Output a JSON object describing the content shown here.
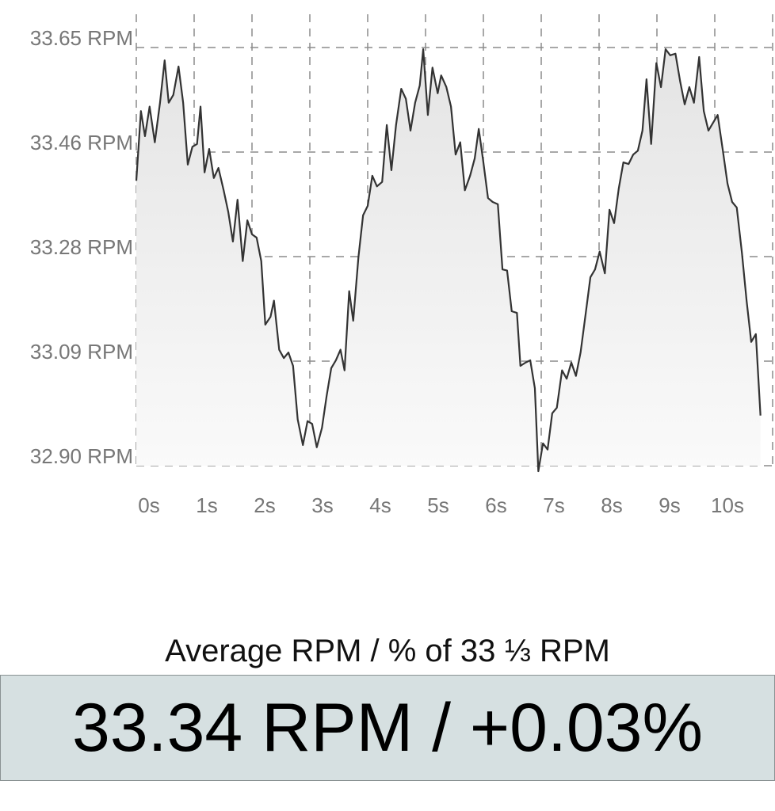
{
  "chart_data": {
    "type": "line",
    "color": "#333333",
    "grid": true,
    "xlim": [
      0,
      11
    ],
    "ylim": [
      32.9,
      33.65
    ],
    "xticks": [
      {
        "value": 0,
        "label": "0s"
      },
      {
        "value": 1,
        "label": "1s"
      },
      {
        "value": 2,
        "label": "2s"
      },
      {
        "value": 3,
        "label": "3s"
      },
      {
        "value": 4,
        "label": "4s"
      },
      {
        "value": 5,
        "label": "5s"
      },
      {
        "value": 6,
        "label": "6s"
      },
      {
        "value": 7,
        "label": "7s"
      },
      {
        "value": 8,
        "label": "8s"
      },
      {
        "value": 9,
        "label": "9s"
      },
      {
        "value": 10,
        "label": "10s"
      }
    ],
    "yticks": [
      {
        "value": 33.65,
        "label": "33.65 RPM"
      },
      {
        "value": 33.4625,
        "label": "33.46 RPM"
      },
      {
        "value": 33.275,
        "label": "33.28 RPM"
      },
      {
        "value": 33.0875,
        "label": "33.09 RPM"
      },
      {
        "value": 32.9,
        "label": "32.90 RPM"
      }
    ],
    "x": [
      0,
      0.08,
      0.15,
      0.23,
      0.32,
      0.41,
      0.49,
      0.56,
      0.64,
      0.73,
      0.81,
      0.89,
      0.97,
      1.05,
      1.11,
      1.18,
      1.26,
      1.34,
      1.42,
      1.51,
      1.59,
      1.67,
      1.75,
      1.84,
      1.92,
      2.0,
      2.08,
      2.16,
      2.23,
      2.32,
      2.38,
      2.47,
      2.55,
      2.63,
      2.71,
      2.79,
      2.88,
      2.96,
      3.04,
      3.12,
      3.21,
      3.29,
      3.37,
      3.45,
      3.53,
      3.6,
      3.68,
      3.75,
      3.84,
      3.92,
      4.0,
      4.08,
      4.16,
      4.25,
      4.33,
      4.41,
      4.49,
      4.58,
      4.66,
      4.74,
      4.82,
      4.9,
      4.96,
      5.04,
      5.12,
      5.21,
      5.27,
      5.36,
      5.44,
      5.52,
      5.6,
      5.68,
      5.77,
      5.85,
      5.92,
      6.0,
      6.08,
      6.16,
      6.25,
      6.33,
      6.41,
      6.49,
      6.58,
      6.64,
      6.73,
      6.81,
      6.89,
      6.95,
      7.03,
      7.11,
      7.19,
      7.27,
      7.36,
      7.44,
      7.52,
      7.6,
      7.68,
      7.77,
      7.85,
      7.93,
      8.01,
      8.1,
      8.18,
      8.26,
      8.34,
      8.42,
      8.51,
      8.59,
      8.67,
      8.75,
      8.82,
      8.9,
      8.99,
      9.07,
      9.15,
      9.23,
      9.32,
      9.4,
      9.48,
      9.56,
      9.64,
      9.73,
      9.81,
      9.89,
      9.97,
      10.05,
      10.14,
      10.22,
      10.3,
      10.38,
      10.47,
      10.55,
      10.63,
      10.71,
      10.79
    ],
    "values": [
      33.411,
      33.536,
      33.491,
      33.544,
      33.48,
      33.551,
      33.627,
      33.551,
      33.565,
      33.616,
      33.551,
      33.44,
      33.472,
      33.477,
      33.544,
      33.426,
      33.468,
      33.416,
      33.434,
      33.394,
      33.355,
      33.302,
      33.377,
      33.267,
      33.34,
      33.315,
      33.309,
      33.267,
      33.153,
      33.167,
      33.196,
      33.108,
      33.093,
      33.103,
      33.079,
      32.983,
      32.937,
      32.98,
      32.975,
      32.933,
      32.968,
      33.025,
      33.075,
      33.089,
      33.108,
      33.071,
      33.213,
      33.16,
      33.274,
      33.349,
      33.366,
      33.42,
      33.401,
      33.409,
      33.511,
      33.43,
      33.511,
      33.576,
      33.558,
      33.501,
      33.551,
      33.582,
      33.647,
      33.529,
      33.614,
      33.568,
      33.6,
      33.579,
      33.544,
      33.458,
      33.48,
      33.394,
      33.42,
      33.451,
      33.504,
      33.444,
      33.38,
      33.373,
      33.369,
      33.252,
      33.25,
      33.177,
      33.174,
      33.079,
      33.085,
      33.089,
      33.039,
      32.89,
      32.94,
      32.929,
      32.994,
      33.004,
      33.071,
      33.056,
      33.085,
      33.061,
      33.103,
      33.174,
      33.238,
      33.252,
      33.284,
      33.245,
      33.359,
      33.335,
      33.397,
      33.444,
      33.441,
      33.458,
      33.465,
      33.501,
      33.593,
      33.477,
      33.622,
      33.579,
      33.647,
      33.636,
      33.639,
      33.59,
      33.548,
      33.579,
      33.551,
      33.633,
      33.536,
      33.501,
      33.515,
      33.529,
      33.465,
      33.406,
      33.373,
      33.363,
      33.281,
      33.196,
      33.122,
      33.136,
      32.99
    ]
  },
  "summary": {
    "label": "Average RPM / % of 33 ⅓ RPM",
    "value": "33.34 RPM / +0.03%"
  }
}
